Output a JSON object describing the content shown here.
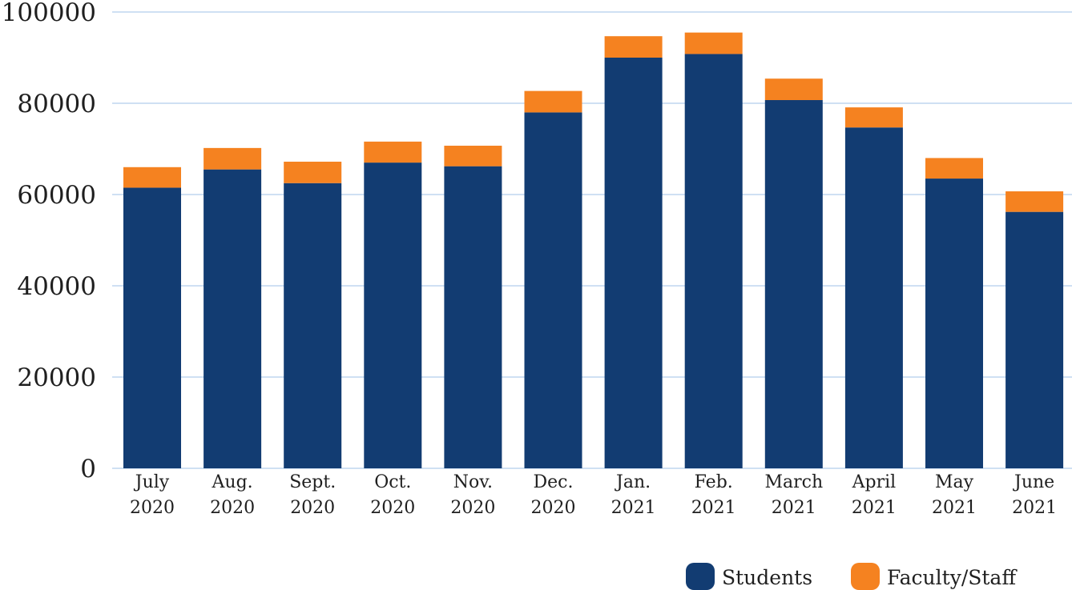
{
  "colors": {
    "students": "#123c72",
    "faculty_staff": "#f58220",
    "grid": "#cfe0f3",
    "text": "#1f1f1f"
  },
  "chart_data": {
    "type": "bar",
    "stacked": true,
    "title": "",
    "xlabel": "",
    "ylabel": "",
    "ylim": [
      0,
      100000
    ],
    "yticks": [
      "0",
      "20000",
      "40000",
      "60000",
      "80000",
      "100000"
    ],
    "grid": true,
    "legend_position": "bottom-right",
    "categories": [
      [
        "July",
        "2020"
      ],
      [
        "Aug.",
        "2020"
      ],
      [
        "Sept.",
        "2020"
      ],
      [
        "Oct.",
        "2020"
      ],
      [
        "Nov.",
        "2020"
      ],
      [
        "Dec.",
        "2020"
      ],
      [
        "Jan.",
        "2021"
      ],
      [
        "Feb.",
        "2021"
      ],
      [
        "March",
        "2021"
      ],
      [
        "April",
        "2021"
      ],
      [
        "May",
        "2021"
      ],
      [
        "June",
        "2021"
      ]
    ],
    "series": [
      {
        "name": "Students",
        "color_key": "students",
        "values": [
          61500,
          65500,
          62500,
          67000,
          66200,
          78000,
          90000,
          90800,
          80700,
          74700,
          63500,
          56200
        ]
      },
      {
        "name": "Faculty/Staff",
        "color_key": "faculty_staff",
        "values": [
          4500,
          4700,
          4700,
          4600,
          4500,
          4700,
          4700,
          4700,
          4700,
          4400,
          4500,
          4500
        ]
      }
    ]
  }
}
